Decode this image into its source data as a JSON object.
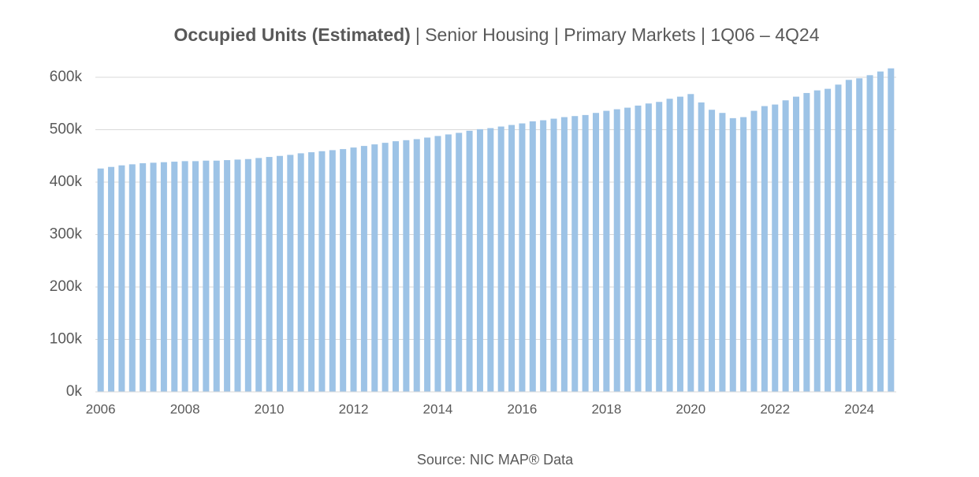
{
  "chart_data": {
    "type": "bar",
    "title": "Occupied Units (Estimated)",
    "subtitle": "| Senior Housing | Primary Markets | 1Q06 – 4Q24",
    "source": "Source: NIC MAP® Data",
    "categories": [
      "2006",
      null,
      null,
      null,
      null,
      null,
      null,
      null,
      "2008",
      null,
      null,
      null,
      null,
      null,
      null,
      null,
      "2010",
      null,
      null,
      null,
      null,
      null,
      null,
      null,
      "2012",
      null,
      null,
      null,
      null,
      null,
      null,
      null,
      "2014",
      null,
      null,
      null,
      null,
      null,
      null,
      null,
      "2016",
      null,
      null,
      null,
      null,
      null,
      null,
      null,
      "2018",
      null,
      null,
      null,
      null,
      null,
      null,
      null,
      "2020",
      null,
      null,
      null,
      null,
      null,
      null,
      null,
      "2022",
      null,
      null,
      null,
      null,
      null,
      null,
      null,
      "2024",
      null,
      null,
      null
    ],
    "values": [
      426000,
      429000,
      432000,
      434000,
      436000,
      437000,
      438000,
      439000,
      440000,
      440000,
      441000,
      441000,
      442000,
      443000,
      444000,
      446000,
      448000,
      450000,
      452000,
      455000,
      457000,
      459000,
      461000,
      463000,
      466000,
      469000,
      472000,
      475000,
      478000,
      480000,
      482000,
      485000,
      488000,
      491000,
      494000,
      498000,
      501000,
      503000,
      506000,
      509000,
      512000,
      516000,
      518000,
      521000,
      524000,
      526000,
      528000,
      532000,
      536000,
      539000,
      542000,
      546000,
      550000,
      553000,
      559000,
      563000,
      568000,
      552000,
      538000,
      532000,
      522000,
      524000,
      536000,
      545000,
      548000,
      556000,
      563000,
      570000,
      575000,
      578000,
      586000,
      595000,
      598000,
      604000,
      611000,
      617000
    ],
    "color": "#9dc3e6",
    "ylim": [
      0,
      620000
    ],
    "yticks": [
      {
        "value": 0,
        "label": "0k"
      },
      {
        "value": 100000,
        "label": "100k"
      },
      {
        "value": 200000,
        "label": "200k"
      },
      {
        "value": 300000,
        "label": "300k"
      },
      {
        "value": 400000,
        "label": "400k"
      },
      {
        "value": 500000,
        "label": "500k"
      },
      {
        "value": 600000,
        "label": "600k"
      }
    ],
    "grid": true
  }
}
